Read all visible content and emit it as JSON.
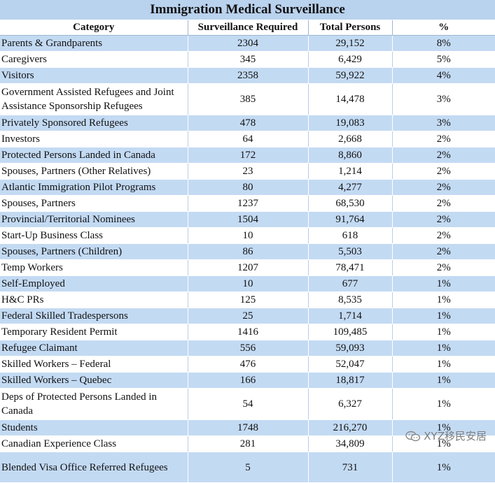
{
  "title": "Immigration Medical Surveillance",
  "headers": {
    "category": "Category",
    "surveillance": "Surveillance Required",
    "total": "Total Persons",
    "pct": "%"
  },
  "rows": [
    {
      "category": "Parents & Grandparents",
      "surveillance": "2304",
      "total": "29,152",
      "pct": "8%"
    },
    {
      "category": "Caregivers",
      "surveillance": "345",
      "total": "6,429",
      "pct": "5%"
    },
    {
      "category": "Visitors",
      "surveillance": "2358",
      "total": "59,922",
      "pct": "4%"
    },
    {
      "category": "Government Assisted Refugees and Joint Assistance Sponsorship Refugees",
      "surveillance": "385",
      "total": "14,478",
      "pct": "3%"
    },
    {
      "category": "Privately Sponsored Refugees",
      "surveillance": "478",
      "total": "19,083",
      "pct": "3%"
    },
    {
      "category": "Investors",
      "surveillance": "64",
      "total": "2,668",
      "pct": "2%"
    },
    {
      "category": "Protected Persons Landed in Canada",
      "surveillance": "172",
      "total": "8,860",
      "pct": "2%"
    },
    {
      "category": "Spouses, Partners (Other Relatives)",
      "surveillance": "23",
      "total": "1,214",
      "pct": "2%"
    },
    {
      "category": "Atlantic Immigration Pilot Programs",
      "surveillance": "80",
      "total": "4,277",
      "pct": "2%"
    },
    {
      "category": "Spouses, Partners",
      "surveillance": "1237",
      "total": "68,530",
      "pct": "2%"
    },
    {
      "category": "Provincial/Territorial Nominees",
      "surveillance": "1504",
      "total": "91,764",
      "pct": "2%"
    },
    {
      "category": "Start-Up Business Class",
      "surveillance": "10",
      "total": "618",
      "pct": "2%"
    },
    {
      "category": "Spouses, Partners (Children)",
      "surveillance": "86",
      "total": "5,503",
      "pct": "2%"
    },
    {
      "category": "Temp Workers",
      "surveillance": "1207",
      "total": "78,471",
      "pct": "2%"
    },
    {
      "category": "Self-Employed",
      "surveillance": "10",
      "total": "677",
      "pct": "1%"
    },
    {
      "category": "H&C PRs",
      "surveillance": "125",
      "total": "8,535",
      "pct": "1%"
    },
    {
      "category": "Federal Skilled Tradespersons",
      "surveillance": "25",
      "total": "1,714",
      "pct": "1%"
    },
    {
      "category": "Temporary Resident Permit",
      "surveillance": "1416",
      "total": "109,485",
      "pct": "1%"
    },
    {
      "category": "Refugee Claimant",
      "surveillance": "556",
      "total": "59,093",
      "pct": "1%"
    },
    {
      "category": "Skilled Workers – Federal",
      "surveillance": "476",
      "total": "52,047",
      "pct": "1%"
    },
    {
      "category": "Skilled Workers – Quebec",
      "surveillance": "166",
      "total": "18,817",
      "pct": "1%"
    },
    {
      "category": "Deps of Protected Persons Landed in Canada",
      "surveillance": "54",
      "total": "6,327",
      "pct": "1%"
    },
    {
      "category": "Students",
      "surveillance": "1748",
      "total": "216,270",
      "pct": "1%"
    },
    {
      "category": "Canadian Experience Class",
      "surveillance": "281",
      "total": "34,809",
      "pct": "1%"
    },
    {
      "category": "Blended Visa Office Referred Refugees",
      "surveillance": "5",
      "total": "731",
      "pct": "1%"
    }
  ],
  "watermark": "XYZ移民安居",
  "colors": {
    "title_bg": "#b9d2ee",
    "band_bg": "#c3daf3"
  }
}
